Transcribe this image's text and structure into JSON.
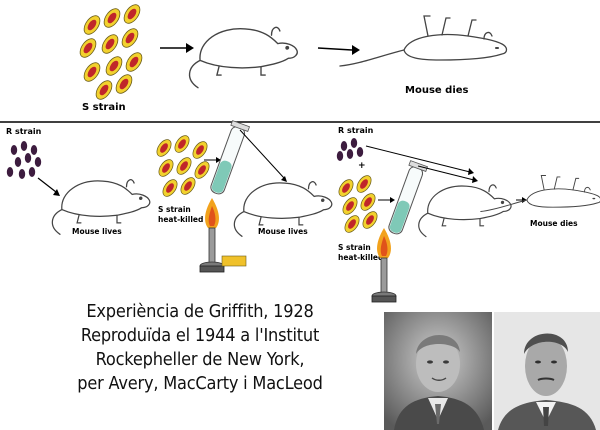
{
  "labels": {
    "s_strain_top": "S strain",
    "mouse_dies_top": "Mouse dies",
    "r_strain_1": "R strain",
    "mouse_lives_1": "Mouse lives",
    "s_strain_heat_killed_1": [
      "S strain",
      "heat-killed"
    ],
    "mouse_lives_2": "Mouse lives",
    "r_strain_2": "R strain",
    "plus_sign": "+",
    "s_strain_heat_killed_2": [
      "S strain",
      "heat-killed"
    ],
    "mouse_dies_bottom": "Mouse dies"
  },
  "caption": {
    "line1": "Experiència de Griffith, 1928",
    "line2": "Reproduïda el 1944 a l'Institut",
    "line3": "Rockepheller de New York,",
    "line4": "per Avery, MacCarty i MacLeod"
  },
  "colors": {
    "s_cell_fill": "#f2d12e",
    "s_cell_nucleus": "#c0262a",
    "r_cell_fill": "#3d1c3f",
    "tube_liquid": "#7fc9b7",
    "flame_outer": "#f2a21c",
    "flame_inner": "#e0531a",
    "burner_base": "#f0c12a"
  },
  "photos": [
    "photo-scientist-left",
    "photo-scientist-right"
  ]
}
